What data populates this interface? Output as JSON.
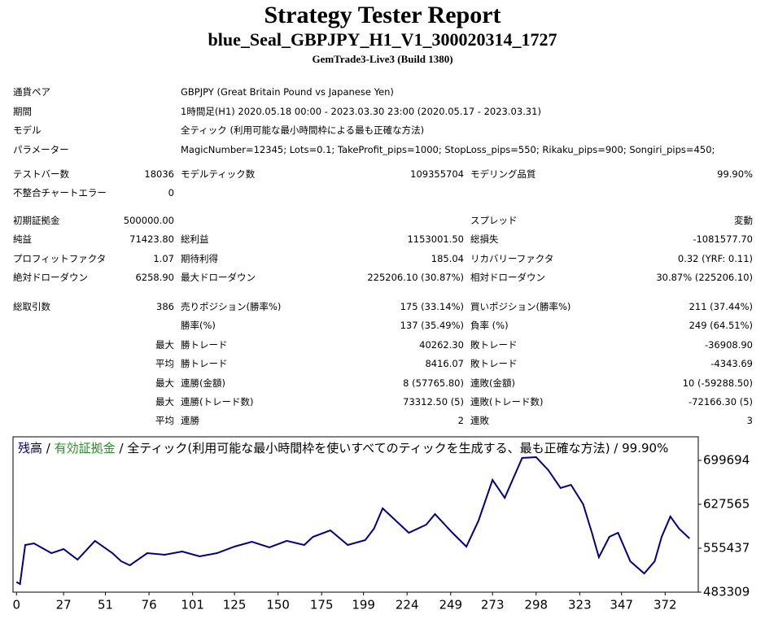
{
  "header": {
    "title": "Strategy Tester Report",
    "subtitle": "blue_Seal_GBPJPY_H1_V1_300020314_1727",
    "build": "GemTrade3-Live3 (Build 1380)"
  },
  "settings": [
    [
      "通貨ペア",
      "GBPJPY (Great Britain Pound vs Japanese Yen)"
    ],
    [
      "期間",
      "1時間足(H1) 2020.05.18 00:00 - 2023.03.30 23:00 (2020.05.17 - 2023.03.31)"
    ],
    [
      "モデル",
      "全ティック (利用可能な最小時間枠による最も正確な方法)"
    ],
    [
      "パラメーター",
      "MagicNumber=12345; Lots=0.1; TakeProfit_pips=1000; StopLoss_pips=550; Rikaku_pips=900; Songiri_pips=450;"
    ]
  ],
  "stats": [
    [
      [
        "テストバー数",
        "18036",
        "モデルティック数",
        "109355704",
        "モデリング品質",
        "99.90%"
      ],
      [
        "不整合チャートエラー",
        "0",
        null,
        null,
        null,
        null
      ]
    ],
    [
      [
        "初期証拠金",
        "500000.00",
        null,
        null,
        "スプレッド",
        "変動"
      ],
      [
        "純益",
        "71423.80",
        "総利益",
        "1153001.50",
        "総損失",
        "-1081577.70"
      ],
      [
        "プロフィットファクタ",
        "1.07",
        "期待利得",
        "185.04",
        "リカバリーファクタ",
        "0.32 (YRF: 0.11)"
      ],
      [
        "絶対ドローダウン",
        "6258.90",
        "最大ドローダウン",
        "225206.10 (30.87%)",
        "相対ドローダウン",
        "30.87% (225206.10)"
      ]
    ],
    [
      [
        "総取引数",
        "386",
        "売りポジション(勝率%)",
        "175 (33.14%)",
        "買いポジション(勝率%)",
        "211 (37.44%)"
      ],
      [
        null,
        null,
        "勝率(%)",
        "137 (35.49%)",
        "負率 (%)",
        "249 (64.51%)"
      ],
      [
        null,
        "最大",
        "勝トレード",
        "40262.30",
        "敗トレード",
        "-36908.90"
      ],
      [
        null,
        "平均",
        "勝トレード",
        "8416.07",
        "敗トレード",
        "-4343.69"
      ],
      [
        null,
        "最大",
        "連勝(金額)",
        "8 (57765.80)",
        "連敗(金額)",
        "10 (-59288.50)"
      ],
      [
        null,
        "最大",
        "連勝(トレード数)",
        "73312.50 (5)",
        "連敗(トレード数)",
        "-72166.30 (5)"
      ],
      [
        null,
        "平均",
        "連勝",
        "2",
        "連敗",
        "3"
      ]
    ]
  ],
  "chart_data": {
    "type": "line",
    "legend_separator": "/",
    "equity_label": {
      "text": "有効証拠金",
      "color": "#2e8b2e"
    },
    "legend_note": "全ティック(利用可能な最小時間枠を使いすべてのティックを生成する、最も正確な方法) / 99.90%",
    "x": [
      0,
      2,
      5,
      10,
      20,
      27,
      35,
      45,
      55,
      60,
      65,
      75,
      85,
      95,
      105,
      115,
      125,
      135,
      145,
      155,
      165,
      170,
      180,
      190,
      200,
      205,
      210,
      215,
      225,
      235,
      240,
      250,
      258,
      265,
      273,
      280,
      290,
      298,
      305,
      312,
      318,
      325,
      330,
      334,
      340,
      345,
      352,
      360,
      366,
      370,
      375,
      380,
      386
    ],
    "series": [
      {
        "name": "残高",
        "color": "#000080",
        "values": [
          500000,
          496700,
          560800,
          563400,
          547400,
          554100,
          536700,
          567500,
          547400,
          534100,
          527400,
          547400,
          544700,
          550100,
          542100,
          547400,
          558100,
          566100,
          556800,
          567500,
          560800,
          574100,
          584800,
          560800,
          568800,
          587500,
          620900,
          607500,
          580800,
          594200,
          611500,
          580800,
          558100,
          600900,
          667600,
          638200,
          703700,
          705000,
          683700,
          654300,
          659600,
          627600,
          580800,
          540700,
          574100,
          580800,
          534100,
          514000,
          534100,
          574100,
          607500,
          587500,
          571400
        ]
      }
    ],
    "xlim": [
      -2,
      391
    ],
    "ylim": [
      483309,
      738400
    ],
    "xticks": [
      0,
      27,
      51,
      76,
      101,
      125,
      150,
      175,
      199,
      224,
      249,
      273,
      298,
      323,
      347,
      372
    ],
    "yticks": [
      483309,
      555437,
      627565,
      699694
    ]
  }
}
